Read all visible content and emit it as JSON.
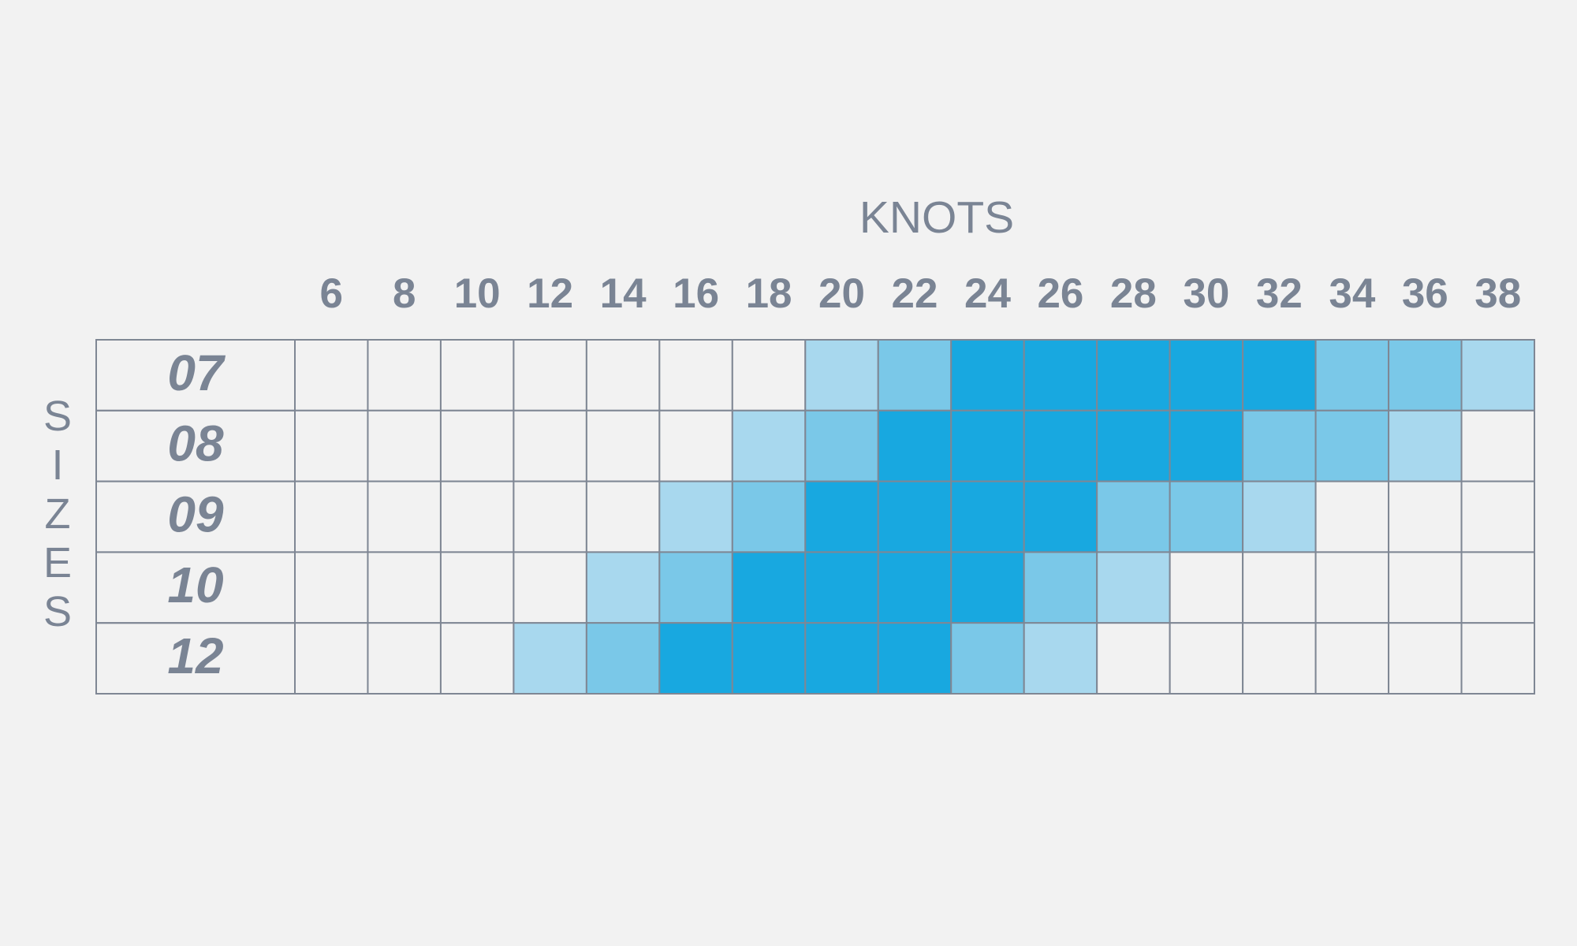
{
  "chart_data": {
    "type": "heatmap",
    "x_label": "KNOTS",
    "y_label": "SIZES",
    "x": [
      6,
      8,
      10,
      12,
      14,
      16,
      18,
      20,
      22,
      24,
      26,
      28,
      30,
      32,
      34,
      36,
      38
    ],
    "categories": [
      "07",
      "08",
      "09",
      "10",
      "12"
    ],
    "values": [
      [
        0,
        0,
        0,
        0,
        0,
        0,
        0,
        1,
        2,
        3,
        3,
        3,
        3,
        3,
        2,
        2,
        1
      ],
      [
        0,
        0,
        0,
        0,
        0,
        0,
        1,
        2,
        3,
        3,
        3,
        3,
        3,
        2,
        2,
        1,
        0
      ],
      [
        0,
        0,
        0,
        0,
        0,
        1,
        2,
        3,
        3,
        3,
        3,
        2,
        2,
        1,
        0,
        0,
        0
      ],
      [
        0,
        0,
        0,
        0,
        1,
        2,
        3,
        3,
        3,
        3,
        2,
        1,
        0,
        0,
        0,
        0,
        0
      ],
      [
        0,
        0,
        0,
        1,
        2,
        3,
        3,
        3,
        3,
        2,
        1,
        0,
        0,
        0,
        0,
        0,
        0
      ]
    ],
    "colors": [
      "#f2f2f2",
      "#a8d8ee",
      "#7ac8e8",
      "#18a8e0"
    ]
  }
}
